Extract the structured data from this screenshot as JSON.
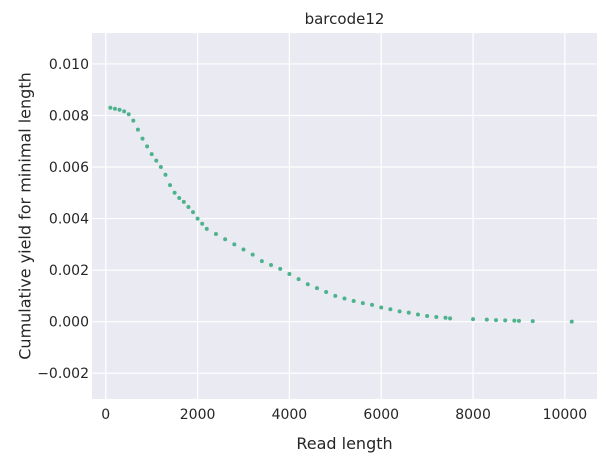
{
  "chart_data": {
    "type": "scatter",
    "title": "barcode12",
    "xlabel": "Read length",
    "ylabel": "Cumulative yield for minimal length",
    "xlim": [
      -300,
      10700
    ],
    "ylim": [
      -0.003,
      0.0112
    ],
    "xticks": [
      0,
      2000,
      4000,
      6000,
      8000,
      10000
    ],
    "xtick_labels": [
      "0",
      "2000",
      "4000",
      "6000",
      "8000",
      "10000"
    ],
    "yticks": [
      -0.002,
      0.0,
      0.002,
      0.004,
      0.006,
      0.008,
      0.01
    ],
    "ytick_labels": [
      "−0.002",
      "0.000",
      "0.002",
      "0.004",
      "0.006",
      "0.008",
      "0.010"
    ],
    "grid": true,
    "background": "#eaeaf2",
    "grid_color": "#ffffff",
    "marker_color": "#4db38c",
    "series": [
      {
        "points": [
          [
            100,
            0.0083
          ],
          [
            200,
            0.00826
          ],
          [
            300,
            0.00822
          ],
          [
            400,
            0.00816
          ],
          [
            500,
            0.00805
          ],
          [
            600,
            0.0078
          ],
          [
            700,
            0.00745
          ],
          [
            800,
            0.0071
          ],
          [
            900,
            0.0068
          ],
          [
            1000,
            0.0065
          ],
          [
            1100,
            0.00625
          ],
          [
            1200,
            0.006
          ],
          [
            1300,
            0.0057
          ],
          [
            1400,
            0.0053
          ],
          [
            1500,
            0.005
          ],
          [
            1600,
            0.0048
          ],
          [
            1700,
            0.00465
          ],
          [
            1800,
            0.00445
          ],
          [
            1900,
            0.00425
          ],
          [
            2000,
            0.004
          ],
          [
            2100,
            0.0038
          ],
          [
            2200,
            0.0036
          ],
          [
            2400,
            0.0034
          ],
          [
            2600,
            0.0032
          ],
          [
            2800,
            0.003
          ],
          [
            3000,
            0.0028
          ],
          [
            3200,
            0.0026
          ],
          [
            3400,
            0.00235
          ],
          [
            3600,
            0.0022
          ],
          [
            3800,
            0.00205
          ],
          [
            4000,
            0.00185
          ],
          [
            4200,
            0.00165
          ],
          [
            4400,
            0.00145
          ],
          [
            4600,
            0.0013
          ],
          [
            4800,
            0.00115
          ],
          [
            5000,
            0.001
          ],
          [
            5200,
            0.0009
          ],
          [
            5400,
            0.0008
          ],
          [
            5600,
            0.00072
          ],
          [
            5800,
            0.00065
          ],
          [
            6000,
            0.00055
          ],
          [
            6200,
            0.00048
          ],
          [
            6400,
            0.0004
          ],
          [
            6600,
            0.00035
          ],
          [
            6800,
            0.00028
          ],
          [
            7000,
            0.00022
          ],
          [
            7200,
            0.00018
          ],
          [
            7400,
            0.00015
          ],
          [
            7500,
            0.00013
          ],
          [
            8000,
            0.0001
          ],
          [
            8300,
            8e-05
          ],
          [
            8500,
            6e-05
          ],
          [
            8700,
            5e-05
          ],
          [
            8900,
            4e-05
          ],
          [
            9000,
            3e-05
          ],
          [
            9300,
            2e-05
          ],
          [
            10150,
            0.0
          ]
        ]
      }
    ]
  }
}
